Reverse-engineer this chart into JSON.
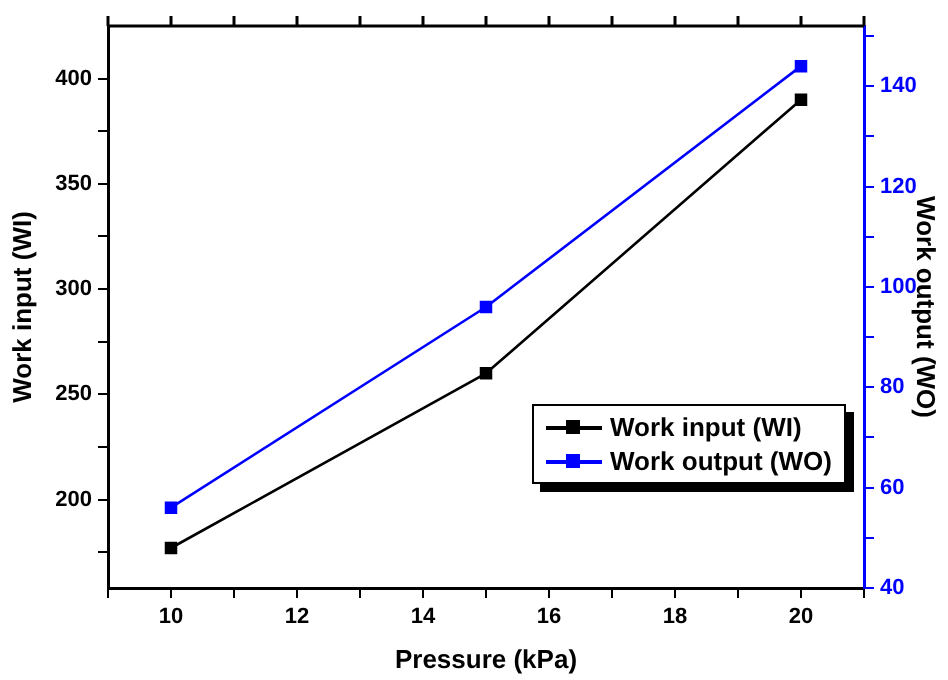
{
  "chart_data": {
    "type": "line",
    "xlabel": "Pressure (kPa)",
    "ylabel": "Work input (WI)",
    "y2label": "Work output (WO)",
    "x": [
      10,
      15,
      20
    ],
    "series": [
      {
        "name": "Work input (WI)",
        "color": "#000000",
        "values": [
          177,
          260,
          390
        ]
      },
      {
        "name": "Work output (WO)",
        "color": "#0000ff",
        "values": [
          56,
          96,
          144
        ],
        "axis": "y2"
      }
    ],
    "xlim": [
      9,
      21
    ],
    "xticks": [
      {
        "value": 9,
        "label": null
      },
      10,
      {
        "value": 11,
        "label": null
      },
      12,
      {
        "value": 13,
        "label": null
      },
      14,
      {
        "value": 15,
        "label": null
      },
      16,
      {
        "value": 17,
        "label": null
      },
      18,
      {
        "value": 19,
        "label": null
      },
      20,
      {
        "value": 21,
        "label": null
      }
    ],
    "ylim": [
      158,
      425
    ],
    "yticks": [
      {
        "value": 175,
        "label": null
      },
      200,
      {
        "value": 225,
        "label": null
      },
      250,
      {
        "value": 275,
        "label": null
      },
      300,
      {
        "value": 325,
        "label": null
      },
      350,
      {
        "value": 375,
        "label": null
      },
      400
    ],
    "y2lim": [
      40,
      152
    ],
    "y2ticks": [
      40,
      {
        "value": 50,
        "label": null
      },
      60,
      {
        "value": 70,
        "label": null
      },
      80,
      {
        "value": 90,
        "label": null
      },
      100,
      {
        "value": 110,
        "label": null
      },
      120,
      {
        "value": 130,
        "label": null
      },
      140,
      {
        "value": 150,
        "label": null
      }
    ],
    "grid": false,
    "legend": "right",
    "marker": "square",
    "line_style": "solid"
  }
}
